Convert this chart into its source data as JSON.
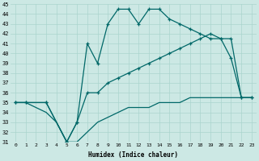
{
  "xlabel": "Humidex (Indice chaleur)",
  "xlim": [
    -0.5,
    23.5
  ],
  "ylim": [
    31,
    45
  ],
  "xticks": [
    0,
    1,
    2,
    3,
    4,
    5,
    6,
    7,
    8,
    9,
    10,
    11,
    12,
    13,
    14,
    15,
    16,
    17,
    18,
    19,
    20,
    21,
    22,
    23
  ],
  "yticks": [
    31,
    32,
    33,
    34,
    35,
    36,
    37,
    38,
    39,
    40,
    41,
    42,
    43,
    44,
    45
  ],
  "bg_color": "#cce8e4",
  "grid_color": "#aad4ce",
  "line_color": "#006868",
  "line1_x": [
    0,
    1,
    3,
    5,
    6,
    7,
    8,
    9,
    10,
    11,
    12,
    13,
    14,
    15,
    16,
    17,
    18,
    19,
    20,
    21,
    22,
    23
  ],
  "line1_y": [
    35,
    35,
    35,
    31,
    33,
    41,
    39,
    43,
    44.5,
    44.5,
    43,
    44.5,
    44.5,
    43.5,
    43,
    42.5,
    42,
    41.5,
    41.5,
    39.5,
    35.5,
    35.5
  ],
  "line2_x": [
    0,
    1,
    3,
    5,
    6,
    7,
    8,
    9,
    10,
    11,
    12,
    13,
    14,
    15,
    16,
    17,
    18,
    19,
    20,
    21,
    22,
    23
  ],
  "line2_y": [
    35,
    35,
    35,
    31,
    33,
    36,
    36,
    37,
    37.5,
    38,
    38.5,
    39,
    39.5,
    40,
    40.5,
    41,
    41.5,
    42,
    41.5,
    41.5,
    35.5,
    35.5
  ],
  "line3_x": [
    0,
    1,
    3,
    4,
    5,
    6,
    7,
    8,
    9,
    10,
    11,
    12,
    13,
    14,
    15,
    16,
    17,
    18,
    19,
    20,
    21,
    22,
    23
  ],
  "line3_y": [
    35,
    35,
    34,
    33,
    31,
    31,
    32,
    33,
    33.5,
    34,
    34.5,
    34.5,
    34.5,
    35,
    35,
    35,
    35.5,
    35.5,
    35.5,
    35.5,
    35.5,
    35.5,
    35.5
  ]
}
